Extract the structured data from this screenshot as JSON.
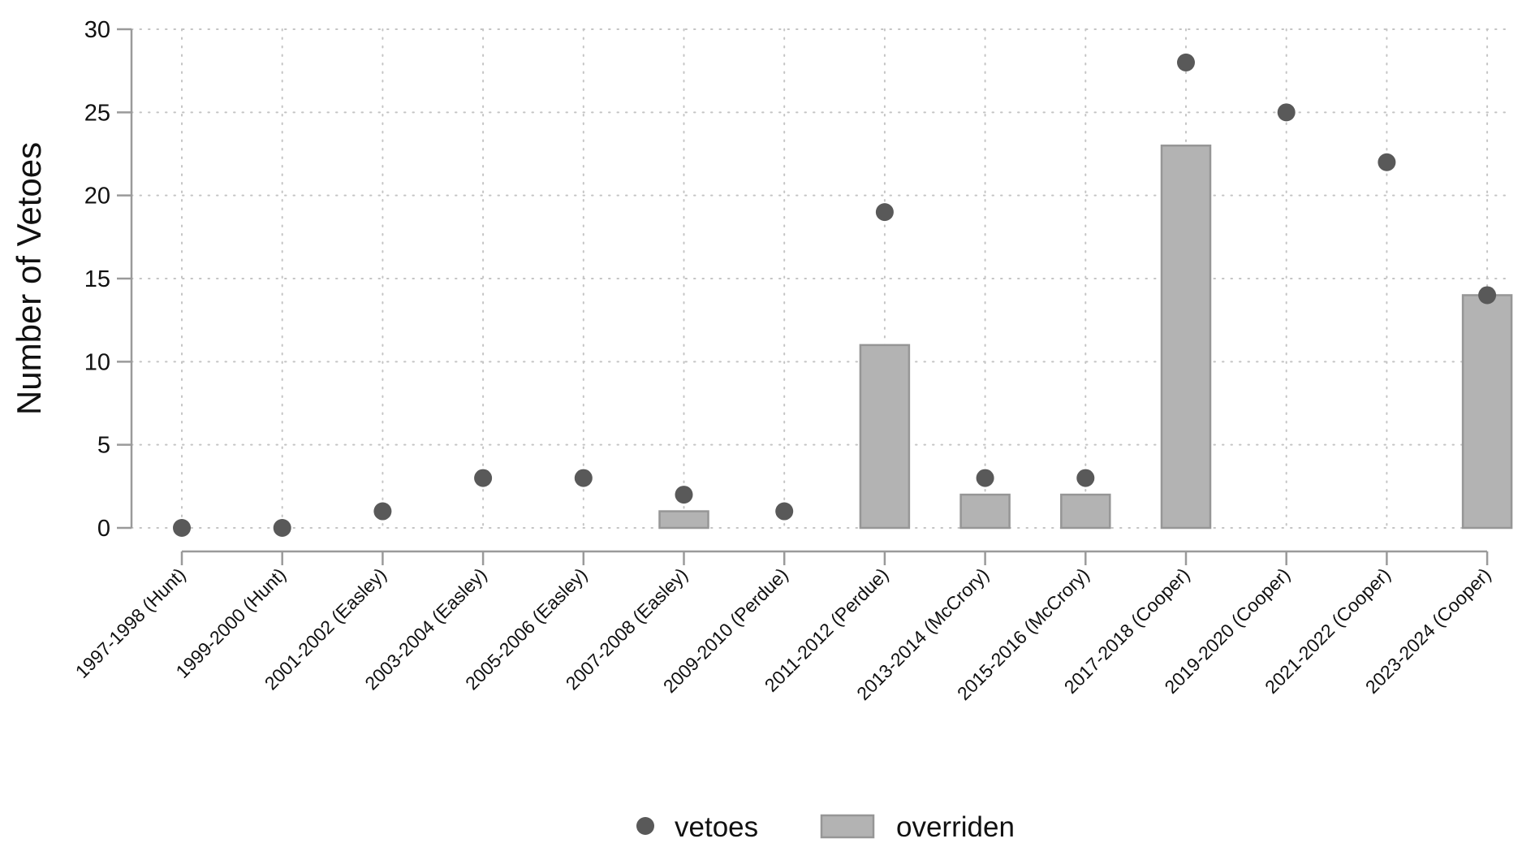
{
  "chart_data": {
    "type": "bar",
    "categories": [
      "1997-1998 (Hunt)",
      "1999-2000 (Hunt)",
      "2001-2002 (Easley)",
      "2003-2004 (Easley)",
      "2005-2006 (Easley)",
      "2007-2008 (Easley)",
      "2009-2010 (Perdue)",
      "2011-2012 (Perdue)",
      "2013-2014 (McCrory)",
      "2015-2016 (McCrory)",
      "2017-2018 (Cooper)",
      "2019-2020 (Cooper)",
      "2021-2022 (Cooper)",
      "2023-2024 (Cooper)"
    ],
    "series": [
      {
        "name": "vetoes",
        "type": "scatter",
        "color": "#595959",
        "values": [
          0,
          0,
          1,
          3,
          3,
          2,
          1,
          19,
          3,
          3,
          28,
          25,
          22,
          14
        ]
      },
      {
        "name": "overriden",
        "type": "bar",
        "color": "#b3b3b3",
        "edge": "#969696",
        "values": [
          0,
          0,
          0,
          0,
          0,
          1,
          0,
          11,
          2,
          2,
          23,
          0,
          0,
          14
        ]
      }
    ],
    "ylabel": "Number of Vetoes",
    "xlabel": "",
    "ylim": [
      0,
      30
    ],
    "yticks": [
      0,
      5,
      10,
      15,
      20,
      25,
      30
    ],
    "grid": true,
    "legend": "bottom"
  }
}
